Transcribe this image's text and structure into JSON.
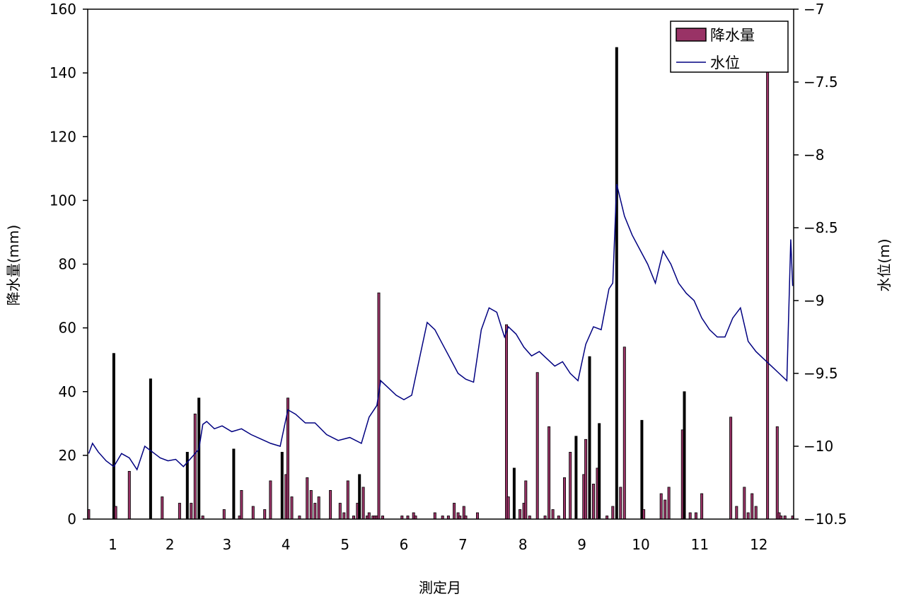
{
  "chart_data": {
    "type": "bar+line",
    "xlabel": "測定月",
    "ylabel_left": "降水量(mm)",
    "ylabel_right": "水位(m)",
    "ylim_left": [
      0,
      160
    ],
    "yticks_left": [
      "0",
      "20",
      "40",
      "60",
      "80",
      "100",
      "120",
      "140",
      "160"
    ],
    "ylim_right": [
      -10.5,
      -7
    ],
    "yticks_right": [
      "−10.5",
      "−10",
      "−9.5",
      "−9",
      "−8.5",
      "−8",
      "−7.5",
      "−7"
    ],
    "xlim_days": [
      1,
      365
    ],
    "month_labels": [
      "1",
      "2",
      "3",
      "4",
      "5",
      "6",
      "7",
      "8",
      "9",
      "10",
      "11",
      "12"
    ],
    "grid": false,
    "legend_position": "top-right",
    "legend": [
      {
        "label": "降水量",
        "kind": "bar",
        "color": "#993366"
      },
      {
        "label": "水位",
        "kind": "line",
        "color": "#000080"
      }
    ],
    "series": [
      {
        "name": "降水量",
        "kind": "bar",
        "color": "#993366",
        "day": [
          1,
          14,
          15,
          22,
          33,
          39,
          48,
          52,
          54,
          56,
          58,
          60,
          71,
          76,
          79,
          80,
          86,
          92,
          95,
          101,
          103,
          104,
          106,
          110,
          114,
          116,
          118,
          120,
          126,
          131,
          133,
          135,
          138,
          140,
          141,
          143,
          145,
          146,
          148,
          149,
          150,
          151,
          153,
          163,
          166,
          169,
          170,
          180,
          184,
          187,
          190,
          192,
          193,
          195,
          196,
          202,
          217,
          218,
          221,
          224,
          226,
          227,
          229,
          233,
          237,
          239,
          241,
          244,
          247,
          250,
          253,
          257,
          258,
          260,
          262,
          264,
          265,
          269,
          272,
          274,
          276,
          278,
          287,
          288,
          297,
          299,
          301,
          308,
          309,
          312,
          315,
          318,
          333,
          336,
          340,
          342,
          344,
          346,
          352,
          357,
          358,
          359,
          361,
          365
        ],
        "values": [
          3,
          52,
          4,
          15,
          44,
          7,
          5,
          21,
          5,
          33,
          38,
          1,
          3,
          22,
          1,
          9,
          4,
          3,
          12,
          21,
          14,
          38,
          7,
          1,
          13,
          9,
          5,
          7,
          9,
          5,
          2,
          12,
          1,
          5,
          14,
          10,
          1,
          2,
          1,
          1,
          1,
          71,
          1,
          1,
          1,
          2,
          1,
          2,
          1,
          1,
          5,
          2,
          1,
          4,
          1,
          2,
          61,
          7,
          16,
          3,
          5,
          12,
          1,
          46,
          1,
          29,
          3,
          1,
          13,
          21,
          26,
          14,
          25,
          51,
          11,
          16,
          30,
          1,
          4,
          148,
          10,
          54,
          31,
          3,
          8,
          6,
          10,
          28,
          40,
          2,
          2,
          8,
          32,
          4,
          10,
          2,
          8,
          4,
          155,
          29,
          2,
          1,
          1,
          1
        ]
      },
      {
        "name": "水位",
        "kind": "line",
        "color": "#000080",
        "day": [
          1,
          3,
          6,
          10,
          14,
          18,
          22,
          26,
          30,
          34,
          38,
          42,
          46,
          50,
          54,
          58,
          60,
          62,
          66,
          70,
          75,
          80,
          85,
          90,
          95,
          100,
          104,
          108,
          113,
          118,
          124,
          130,
          136,
          142,
          146,
          150,
          152,
          156,
          160,
          164,
          168,
          172,
          176,
          180,
          184,
          188,
          192,
          196,
          200,
          204,
          208,
          212,
          216,
          218,
          222,
          226,
          230,
          234,
          238,
          242,
          246,
          250,
          254,
          258,
          262,
          266,
          270,
          272,
          274,
          278,
          282,
          286,
          290,
          294,
          298,
          302,
          306,
          310,
          314,
          318,
          322,
          326,
          330,
          334,
          338,
          342,
          346,
          350,
          354,
          358,
          362,
          364,
          365
        ],
        "values": [
          -10.05,
          -9.98,
          -10.04,
          -10.1,
          -10.14,
          -10.05,
          -10.08,
          -10.16,
          -10.0,
          -10.04,
          -10.08,
          -10.1,
          -10.09,
          -10.14,
          -10.08,
          -10.02,
          -9.85,
          -9.83,
          -9.88,
          -9.86,
          -9.9,
          -9.88,
          -9.92,
          -9.95,
          -9.98,
          -10.0,
          -9.75,
          -9.78,
          -9.84,
          -9.84,
          -9.92,
          -9.96,
          -9.94,
          -9.98,
          -9.8,
          -9.72,
          -9.55,
          -9.6,
          -9.65,
          -9.68,
          -9.65,
          -9.4,
          -9.15,
          -9.2,
          -9.3,
          -9.4,
          -9.5,
          -9.54,
          -9.56,
          -9.2,
          -9.05,
          -9.08,
          -9.25,
          -9.18,
          -9.23,
          -9.32,
          -9.38,
          -9.35,
          -9.4,
          -9.45,
          -9.42,
          -9.5,
          -9.55,
          -9.3,
          -9.18,
          -9.2,
          -8.92,
          -8.88,
          -8.2,
          -8.42,
          -8.55,
          -8.65,
          -8.75,
          -8.88,
          -8.66,
          -8.75,
          -8.88,
          -8.95,
          -9.0,
          -9.12,
          -9.2,
          -9.25,
          -9.25,
          -9.12,
          -9.05,
          -9.28,
          -9.35,
          -9.4,
          -9.45,
          -9.5,
          -9.55,
          -8.58,
          -8.9
        ]
      }
    ]
  }
}
